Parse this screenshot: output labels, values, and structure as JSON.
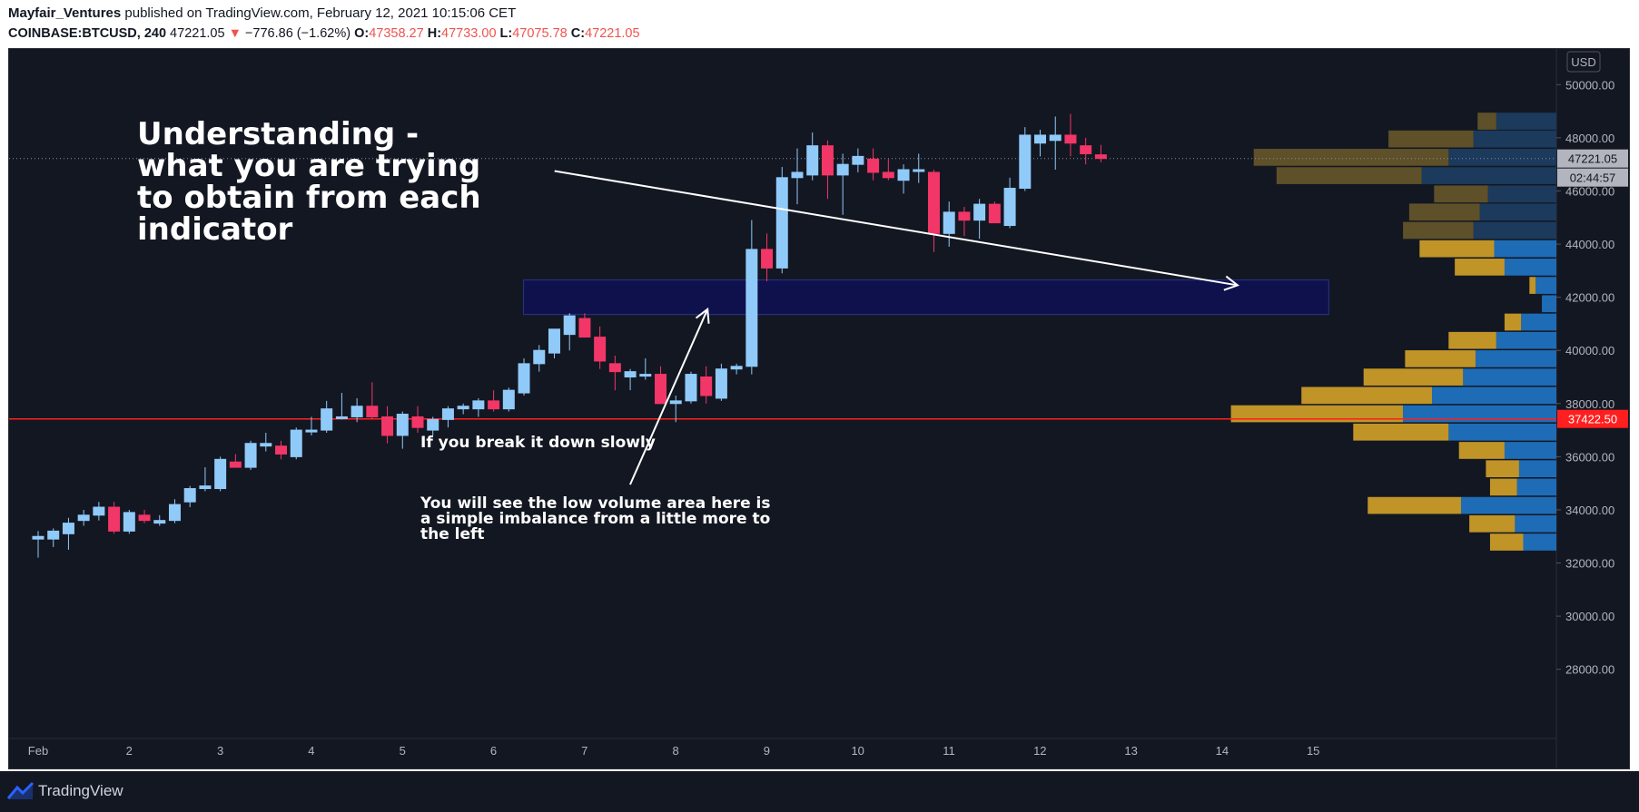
{
  "header": {
    "author": "Mayfair_Ventures",
    "published": " published on TradingView.com, February 12, 2021 10:15:06 CET",
    "symbol": "COINBASE:BTCUSD, 240",
    "last": " 47221.05 ",
    "change_arrow": "▼",
    "change": " −776.86 (−1.62%) ",
    "o_label": "O:",
    "o_value": "47358.27 ",
    "h_label": "H:",
    "h_value": "47733.00 ",
    "l_label": "L:",
    "l_value": "47075.78 ",
    "c_label": "C:",
    "c_value": "47221.05"
  },
  "footer": {
    "brand": "TradingView"
  },
  "chart_data": {
    "type": "candlestick",
    "currency": "USD",
    "ylim": [
      27000,
      51000
    ],
    "yticks": [
      28000,
      30000,
      32000,
      34000,
      36000,
      38000,
      40000,
      42000,
      44000,
      46000,
      48000,
      50000
    ],
    "ytick_labels": [
      "28000.00",
      "30000.00",
      "32000.00",
      "34000.00",
      "36000.00",
      "38000.00",
      "40000.00",
      "42000.00",
      "44000.00",
      "46000.00",
      "48000.00",
      "50000.00"
    ],
    "xticks": [
      {
        "day": 1,
        "label": "Feb"
      },
      {
        "day": 2,
        "label": "2"
      },
      {
        "day": 3,
        "label": "3"
      },
      {
        "day": 4,
        "label": "4"
      },
      {
        "day": 5,
        "label": "5"
      },
      {
        "day": 6,
        "label": "6"
      },
      {
        "day": 7,
        "label": "7"
      },
      {
        "day": 8,
        "label": "8"
      },
      {
        "day": 9,
        "label": "9"
      },
      {
        "day": 10,
        "label": "10"
      },
      {
        "day": 11,
        "label": "11"
      },
      {
        "day": 12,
        "label": "12"
      },
      {
        "day": 13,
        "label": "13"
      },
      {
        "day": 14,
        "label": "14"
      },
      {
        "day": 15,
        "label": "15"
      }
    ],
    "bar_interval_days": 0.1667,
    "candles": [
      {
        "o": 32900,
        "h": 33200,
        "l": 32200,
        "c": 33000
      },
      {
        "o": 32900,
        "h": 33300,
        "l": 32600,
        "c": 33200
      },
      {
        "o": 33100,
        "h": 33700,
        "l": 32500,
        "c": 33500
      },
      {
        "o": 33600,
        "h": 34000,
        "l": 33400,
        "c": 33800
      },
      {
        "o": 33800,
        "h": 34300,
        "l": 33600,
        "c": 34100
      },
      {
        "o": 34100,
        "h": 34300,
        "l": 33100,
        "c": 33200
      },
      {
        "o": 33200,
        "h": 34000,
        "l": 33100,
        "c": 33900
      },
      {
        "o": 33800,
        "h": 34000,
        "l": 33500,
        "c": 33600
      },
      {
        "o": 33500,
        "h": 33800,
        "l": 33400,
        "c": 33600
      },
      {
        "o": 33600,
        "h": 34400,
        "l": 33500,
        "c": 34200
      },
      {
        "o": 34300,
        "h": 34900,
        "l": 34100,
        "c": 34800
      },
      {
        "o": 34800,
        "h": 35600,
        "l": 34700,
        "c": 34900
      },
      {
        "o": 34800,
        "h": 36000,
        "l": 34700,
        "c": 35900
      },
      {
        "o": 35800,
        "h": 36100,
        "l": 35600,
        "c": 35600
      },
      {
        "o": 35600,
        "h": 36600,
        "l": 35500,
        "c": 36500
      },
      {
        "o": 36400,
        "h": 36900,
        "l": 36200,
        "c": 36500
      },
      {
        "o": 36400,
        "h": 36600,
        "l": 35900,
        "c": 36100
      },
      {
        "o": 36000,
        "h": 37100,
        "l": 35900,
        "c": 37000
      },
      {
        "o": 37000,
        "h": 37500,
        "l": 36800,
        "c": 37000
      },
      {
        "o": 37000,
        "h": 38100,
        "l": 36900,
        "c": 37800
      },
      {
        "o": 37500,
        "h": 38400,
        "l": 37400,
        "c": 37500
      },
      {
        "o": 37500,
        "h": 38200,
        "l": 37300,
        "c": 37900
      },
      {
        "o": 37900,
        "h": 38800,
        "l": 37400,
        "c": 37500
      },
      {
        "o": 37500,
        "h": 37900,
        "l": 36500,
        "c": 36800
      },
      {
        "o": 36800,
        "h": 37700,
        "l": 36300,
        "c": 37600
      },
      {
        "o": 37500,
        "h": 37900,
        "l": 36900,
        "c": 37100
      },
      {
        "o": 37000,
        "h": 37500,
        "l": 36800,
        "c": 37400
      },
      {
        "o": 37400,
        "h": 37900,
        "l": 37100,
        "c": 37800
      },
      {
        "o": 37800,
        "h": 38000,
        "l": 37600,
        "c": 37900
      },
      {
        "o": 37800,
        "h": 38200,
        "l": 37500,
        "c": 38100
      },
      {
        "o": 38100,
        "h": 38500,
        "l": 37700,
        "c": 37800
      },
      {
        "o": 37800,
        "h": 38600,
        "l": 37700,
        "c": 38500
      },
      {
        "o": 38400,
        "h": 39700,
        "l": 38300,
        "c": 39500
      },
      {
        "o": 39500,
        "h": 40200,
        "l": 39200,
        "c": 40000
      },
      {
        "o": 39900,
        "h": 40800,
        "l": 39700,
        "c": 40800
      },
      {
        "o": 40600,
        "h": 41400,
        "l": 40000,
        "c": 41300
      },
      {
        "o": 41200,
        "h": 41400,
        "l": 40500,
        "c": 40500
      },
      {
        "o": 40500,
        "h": 40900,
        "l": 39300,
        "c": 39600
      },
      {
        "o": 39500,
        "h": 39800,
        "l": 38500,
        "c": 39200
      },
      {
        "o": 39000,
        "h": 39300,
        "l": 38500,
        "c": 39200
      },
      {
        "o": 39100,
        "h": 39700,
        "l": 38900,
        "c": 39100
      },
      {
        "o": 39100,
        "h": 39400,
        "l": 38000,
        "c": 38000
      },
      {
        "o": 38000,
        "h": 38300,
        "l": 37300,
        "c": 38100
      },
      {
        "o": 38100,
        "h": 39200,
        "l": 38000,
        "c": 39100
      },
      {
        "o": 39000,
        "h": 39400,
        "l": 38000,
        "c": 38300
      },
      {
        "o": 38200,
        "h": 39500,
        "l": 38100,
        "c": 39300
      },
      {
        "o": 39300,
        "h": 39500,
        "l": 39100,
        "c": 39400
      },
      {
        "o": 39400,
        "h": 44900,
        "l": 39100,
        "c": 43800
      },
      {
        "o": 43800,
        "h": 44400,
        "l": 42600,
        "c": 43100
      },
      {
        "o": 43100,
        "h": 46900,
        "l": 42900,
        "c": 46500
      },
      {
        "o": 46500,
        "h": 47600,
        "l": 45500,
        "c": 46700
      },
      {
        "o": 46600,
        "h": 48200,
        "l": 46400,
        "c": 47700
      },
      {
        "o": 47700,
        "h": 47900,
        "l": 45700,
        "c": 46600
      },
      {
        "o": 46600,
        "h": 47400,
        "l": 45100,
        "c": 47000
      },
      {
        "o": 47000,
        "h": 47600,
        "l": 46700,
        "c": 47300
      },
      {
        "o": 47200,
        "h": 47600,
        "l": 46400,
        "c": 46700
      },
      {
        "o": 46700,
        "h": 47200,
        "l": 46400,
        "c": 46500
      },
      {
        "o": 46400,
        "h": 47000,
        "l": 45900,
        "c": 46800
      },
      {
        "o": 46800,
        "h": 47400,
        "l": 46300,
        "c": 46800
      },
      {
        "o": 46700,
        "h": 46800,
        "l": 43700,
        "c": 44400
      },
      {
        "o": 44400,
        "h": 45600,
        "l": 43900,
        "c": 45200
      },
      {
        "o": 45200,
        "h": 45400,
        "l": 44300,
        "c": 44900
      },
      {
        "o": 44900,
        "h": 45700,
        "l": 44200,
        "c": 45500
      },
      {
        "o": 45500,
        "h": 45600,
        "l": 44800,
        "c": 44800
      },
      {
        "o": 44700,
        "h": 46500,
        "l": 44600,
        "c": 46100
      },
      {
        "o": 46100,
        "h": 48400,
        "l": 46000,
        "c": 48100
      },
      {
        "o": 47800,
        "h": 48300,
        "l": 47300,
        "c": 48100
      },
      {
        "o": 47900,
        "h": 48800,
        "l": 46800,
        "c": 48100
      },
      {
        "o": 48100,
        "h": 48900,
        "l": 47300,
        "c": 47800
      },
      {
        "o": 47700,
        "h": 48000,
        "l": 47000,
        "c": 47400
      },
      {
        "o": 47358.27,
        "h": 47733,
        "l": 47075.78,
        "c": 47221.05
      }
    ],
    "volume_profile": {
      "bin_size": 689,
      "rows": [
        {
          "price": 48600,
          "up": 0.29,
          "down": 0.09
        },
        {
          "price": 47930,
          "up": 0.4,
          "down": 0.41
        },
        {
          "price": 47240,
          "up": 0.52,
          "down": 0.94
        },
        {
          "price": 46550,
          "up": 0.65,
          "down": 0.7
        },
        {
          "price": 45860,
          "up": 0.33,
          "down": 0.26
        },
        {
          "price": 45180,
          "up": 0.37,
          "down": 0.34
        },
        {
          "price": 44490,
          "up": 0.4,
          "down": 0.34
        },
        {
          "price": 43800,
          "up": 0.3,
          "down": 0.36
        },
        {
          "price": 43110,
          "up": 0.25,
          "down": 0.24
        },
        {
          "price": 42420,
          "up": 0.1,
          "down": 0.03
        },
        {
          "price": 41730,
          "up": 0.07,
          "down": 0.0
        },
        {
          "price": 41040,
          "up": 0.17,
          "down": 0.08
        },
        {
          "price": 40350,
          "up": 0.29,
          "down": 0.23
        },
        {
          "price": 39660,
          "up": 0.39,
          "down": 0.34
        },
        {
          "price": 38970,
          "up": 0.45,
          "down": 0.48
        },
        {
          "price": 38280,
          "up": 0.6,
          "down": 0.63
        },
        {
          "price": 37590,
          "up": 0.74,
          "down": 0.83
        },
        {
          "price": 36900,
          "up": 0.52,
          "down": 0.46
        },
        {
          "price": 36210,
          "up": 0.25,
          "down": 0.22
        },
        {
          "price": 35520,
          "up": 0.18,
          "down": 0.16
        },
        {
          "price": 34830,
          "up": 0.19,
          "down": 0.13
        },
        {
          "price": 34140,
          "up": 0.46,
          "down": 0.45
        },
        {
          "price": 33450,
          "up": 0.2,
          "down": 0.22
        },
        {
          "price": 32760,
          "up": 0.16,
          "down": 0.16
        }
      ]
    },
    "last_price": 47221.05,
    "last_price_label": "47221.05",
    "countdown_label": "02:44:57",
    "horizontal_line": {
      "price": 37422.5,
      "label": "37422.50"
    },
    "zone": {
      "from_day": 6.33,
      "to_day": 15.17,
      "low": 41350,
      "high": 42650
    },
    "arrow1": {
      "from_day": 6.67,
      "from_price": 46750,
      "to_day": 14.17,
      "to_price": 42450
    },
    "arrow2": {
      "from_day": 7.5,
      "from_price": 34950,
      "to_day": 8.35,
      "to_price": 41550
    },
    "annotations": {
      "title_lines": [
        "Understanding -",
        "what you are trying",
        "to obtain from each",
        "indicator"
      ],
      "note1": "If you break it down slowly",
      "note2_lines": [
        "You will see the low volume area here is",
        "a simple imbalance from a little more to",
        "the left"
      ]
    }
  },
  "colors": {
    "background": "#131722",
    "up": "#90caf9",
    "down": "#f23668",
    "vp_up": "#1e6cb6",
    "vp_down": "#c09427",
    "vp_up_faded": "#1b3a5c",
    "vp_down_faded": "#5e5029",
    "zone": "#0e1150",
    "zone_border": "#2a3390",
    "red_line": "#ff1f1f",
    "axis_text": "#b2b5be",
    "white": "#ffffff"
  }
}
